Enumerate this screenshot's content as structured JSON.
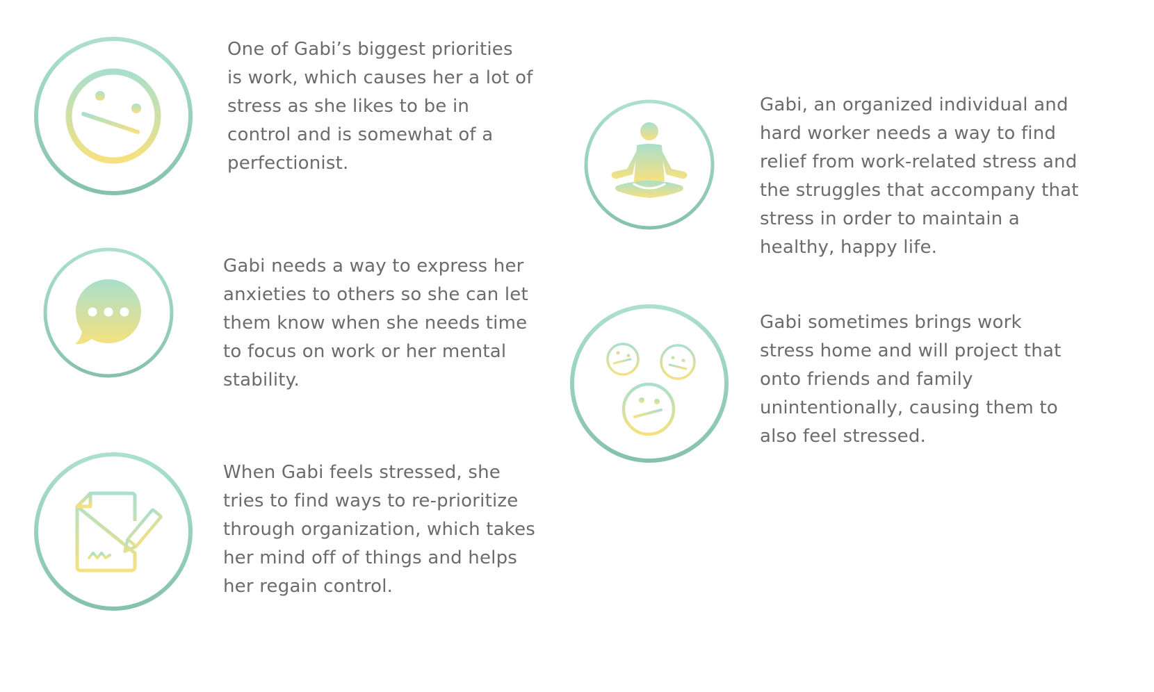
{
  "colors": {
    "ring_top": "#a8dccd",
    "ring_bottom": "#86c2b0",
    "icon_top": "#a9dfcc",
    "icon_bottom": "#f6e17f",
    "text": "#6b6b6b"
  },
  "cards": [
    {
      "id": "work-priority",
      "icon": "neutral-face-icon",
      "text": "One of Gabi’s biggest priorities is work, which causes her a lot of stress as she likes to be in control and is somewhat of a perfectionist."
    },
    {
      "id": "express-anxieties",
      "icon": "chat-bubble-icon",
      "text": "Gabi needs a way to express her anxieties to others so she can let them know when she needs time to focus on work or her mental stability."
    },
    {
      "id": "re-prioritize",
      "icon": "document-pencil-icon",
      "text": "When Gabi feels stressed, she tries to find ways to re-prioritize through organization, which takes her mind off of things and helps her regain control."
    },
    {
      "id": "relief",
      "icon": "meditation-icon",
      "text": "Gabi, an organized individual and hard worker needs a way to find relief from work-related stress and the struggles that accompany that stress in order to maintain a healthy, happy life."
    },
    {
      "id": "brings-stress-home",
      "icon": "group-faces-icon",
      "text": "Gabi sometimes brings work stress home and will project that onto friends and family unintentionally, causing them to also feel stressed."
    }
  ]
}
